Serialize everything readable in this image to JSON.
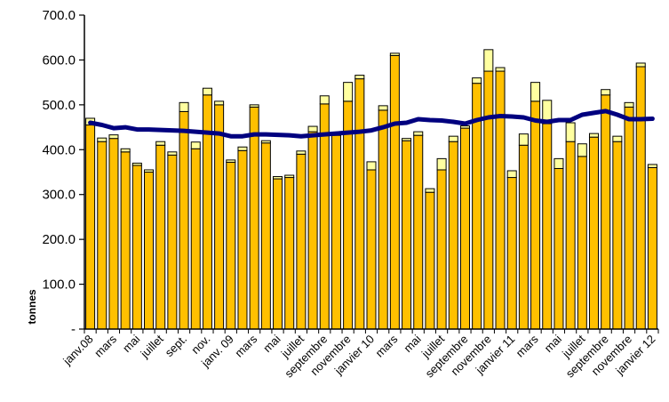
{
  "chart_data": {
    "type": "bar",
    "stacked": true,
    "ylabel": "tonnes",
    "xlabel": "",
    "title": "",
    "ylim": [
      0,
      700
    ],
    "y_ticks": [
      "-",
      "100.0",
      "200.0",
      "300.0",
      "400.0",
      "500.0",
      "600.0",
      "700.0"
    ],
    "grid": false,
    "legend": "none",
    "x_tick_labels": [
      {
        "index": 0,
        "label": "janv.08"
      },
      {
        "index": 2,
        "label": "mars"
      },
      {
        "index": 4,
        "label": "mai"
      },
      {
        "index": 6,
        "label": "juillet"
      },
      {
        "index": 8,
        "label": "sept."
      },
      {
        "index": 10,
        "label": "nov."
      },
      {
        "index": 12,
        "label": "janv. 09"
      },
      {
        "index": 14,
        "label": "mars"
      },
      {
        "index": 16,
        "label": "mai"
      },
      {
        "index": 18,
        "label": "juillet"
      },
      {
        "index": 20,
        "label": "septembre"
      },
      {
        "index": 22,
        "label": "novembre"
      },
      {
        "index": 24,
        "label": "janvier 10"
      },
      {
        "index": 26,
        "label": "mars"
      },
      {
        "index": 28,
        "label": "mai"
      },
      {
        "index": 30,
        "label": "juillet"
      },
      {
        "index": 32,
        "label": "septembre"
      },
      {
        "index": 34,
        "label": "novembre"
      },
      {
        "index": 36,
        "label": "janvier 11"
      },
      {
        "index": 38,
        "label": "mars"
      },
      {
        "index": 40,
        "label": "mai"
      },
      {
        "index": 42,
        "label": "juillet"
      },
      {
        "index": 44,
        "label": "septembre"
      },
      {
        "index": 46,
        "label": "novembre"
      },
      {
        "index": 48,
        "label": "janvier 12"
      }
    ],
    "series": [
      {
        "color": "#FFC000",
        "values": [
          455,
          418,
          425,
          395,
          365,
          350,
          410,
          388,
          485,
          402,
          522,
          500,
          372,
          398,
          495,
          415,
          335,
          338,
          390,
          440,
          502,
          432,
          508,
          558,
          355,
          488,
          610,
          420,
          432,
          305,
          355,
          418,
          448,
          548,
          575,
          575,
          338,
          410,
          508,
          458,
          358,
          418,
          385,
          428,
          522,
          418,
          495,
          585,
          360
        ]
      },
      {
        "color": "#FFFFA0",
        "values": [
          15,
          8,
          8,
          7,
          5,
          5,
          8,
          7,
          20,
          15,
          15,
          8,
          5,
          8,
          5,
          5,
          5,
          5,
          7,
          12,
          18,
          5,
          42,
          8,
          18,
          10,
          5,
          5,
          8,
          8,
          25,
          12,
          5,
          12,
          48,
          8,
          15,
          25,
          42,
          52,
          22,
          42,
          28,
          8,
          12,
          12,
          10,
          8,
          7
        ]
      },
      {
        "type": "line",
        "color": "#00007F",
        "values": [
          460,
          455,
          448,
          450,
          445,
          445,
          444,
          443,
          442,
          440,
          438,
          436,
          430,
          430,
          434,
          434,
          433,
          432,
          430,
          432,
          434,
          436,
          438,
          440,
          443,
          450,
          458,
          460,
          468,
          466,
          465,
          462,
          458,
          466,
          472,
          475,
          474,
          472,
          465,
          462,
          466,
          466,
          478,
          482,
          486,
          478,
          468,
          468,
          469
        ]
      }
    ]
  }
}
